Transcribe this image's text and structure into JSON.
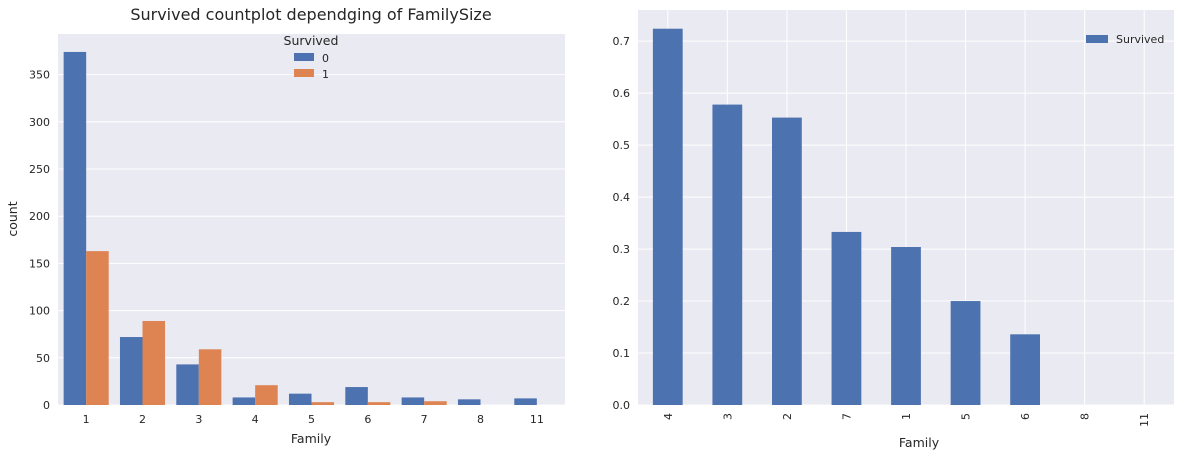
{
  "chart_data": [
    {
      "type": "bar",
      "title": "Survived countplot dependging of FamilySize",
      "xlabel": "Family",
      "ylabel": "count",
      "categories": [
        "1",
        "2",
        "3",
        "4",
        "5",
        "6",
        "7",
        "8",
        "11"
      ],
      "series": [
        {
          "name": "0",
          "color": "#4c72b0",
          "values": [
            374,
            72,
            43,
            8,
            12,
            19,
            8,
            6,
            7
          ]
        },
        {
          "name": "1",
          "color": "#dd8452",
          "values": [
            163,
            89,
            59,
            21,
            3,
            3,
            4,
            0,
            0
          ]
        }
      ],
      "legend": {
        "title": "Survived",
        "placement": "top-center"
      },
      "ylim": [
        0,
        393
      ],
      "yticks": [
        0,
        50,
        100,
        150,
        200,
        250,
        300,
        350
      ],
      "grid": true
    },
    {
      "type": "bar",
      "title": "",
      "xlabel": "Family",
      "ylabel": "",
      "categories": [
        "4",
        "3",
        "2",
        "7",
        "1",
        "5",
        "6",
        "8",
        "11"
      ],
      "series": [
        {
          "name": "Survived",
          "color": "#4c72b0",
          "values": [
            0.724,
            0.578,
            0.553,
            0.333,
            0.304,
            0.2,
            0.136,
            0.0,
            0.0
          ]
        }
      ],
      "legend": {
        "placement": "top-right"
      },
      "ylim": [
        0,
        0.76
      ],
      "yticks": [
        "0.0",
        "0.1",
        "0.2",
        "0.3",
        "0.4",
        "0.5",
        "0.6",
        "0.7"
      ],
      "xtick_rotation": 90,
      "grid": true
    }
  ]
}
